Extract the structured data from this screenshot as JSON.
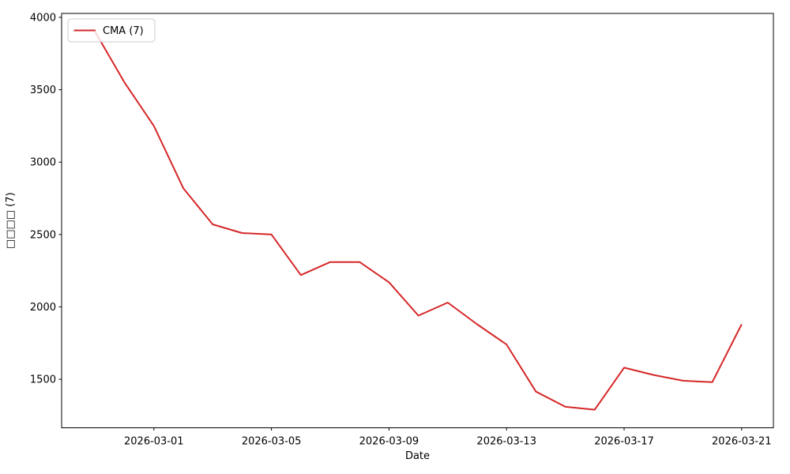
{
  "chart_data": {
    "type": "line",
    "title": "",
    "xlabel": "Date",
    "ylabel": "□□□□ (7)",
    "x": [
      "2026-02-27",
      "2026-02-28",
      "2026-03-01",
      "2026-03-02",
      "2026-03-03",
      "2026-03-04",
      "2026-03-05",
      "2026-03-06",
      "2026-03-07",
      "2026-03-08",
      "2026-03-09",
      "2026-03-10",
      "2026-03-11",
      "2026-03-12",
      "2026-03-13",
      "2026-03-14",
      "2026-03-15",
      "2026-03-16",
      "2026-03-17",
      "2026-03-18",
      "2026-03-19",
      "2026-03-20",
      "2026-03-21"
    ],
    "series": [
      {
        "name": "CMA (7)",
        "color": "#d62728",
        "values": [
          3900,
          3550,
          3250,
          2820,
          2570,
          2510,
          2500,
          2220,
          2310,
          2310,
          2170,
          1940,
          2030,
          1880,
          1740,
          1415,
          1310,
          1290,
          1580,
          1530,
          1490,
          1480,
          1880
        ]
      }
    ],
    "x_tick_labels": [
      "2026-03-01",
      "2026-03-05",
      "2026-03-09",
      "2026-03-13",
      "2026-03-17",
      "2026-03-21"
    ],
    "y_ticks": [
      1500,
      2000,
      2500,
      3000,
      3500,
      4000
    ],
    "ylim": [
      1165,
      4027
    ],
    "xlim_days": [
      -1.14,
      23.08
    ],
    "grid": false,
    "legend_position": "upper left"
  },
  "legend": {
    "label": "CMA (7)"
  },
  "colors": {
    "line": "#d62728",
    "axis": "#000000",
    "legend_border": "#cccccc",
    "legend_fill": "#ffffff",
    "background": "#ffffff"
  }
}
